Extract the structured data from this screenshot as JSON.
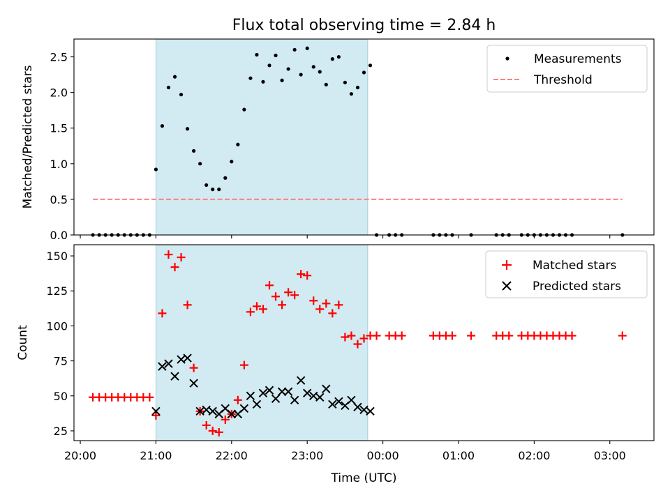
{
  "chart_data": {
    "type": "scatter",
    "title": "Flux total observing time = 2.84 h",
    "xlabel": "Time (UTC)",
    "x_ticks": [
      "20:00",
      "21:00",
      "22:00",
      "23:00",
      "00:00",
      "01:00",
      "02:00",
      "03:00"
    ],
    "xlim": [
      "19:55",
      "03:35"
    ],
    "shaded_interval": {
      "start": "21:00",
      "end": "23:48",
      "color": "#add8e6"
    },
    "panels": [
      {
        "ylabel": "Matched/Predicted stars",
        "ylim": [
          0,
          2.75
        ],
        "y_ticks": [
          "0.0",
          "0.5",
          "1.0",
          "1.5",
          "2.0",
          "2.5"
        ],
        "legend": "top-right",
        "series": [
          {
            "name": "Measurements",
            "marker": "dot",
            "color": "#000000",
            "x": [
              "20:10",
              "20:15",
              "20:20",
              "20:25",
              "20:30",
              "20:35",
              "20:40",
              "20:45",
              "20:50",
              "20:55",
              "21:00",
              "21:05",
              "21:10",
              "21:15",
              "21:20",
              "21:25",
              "21:30",
              "21:35",
              "21:40",
              "21:45",
              "21:50",
              "21:55",
              "22:00",
              "22:05",
              "22:10",
              "22:15",
              "22:20",
              "22:25",
              "22:30",
              "22:35",
              "22:40",
              "22:45",
              "22:50",
              "22:55",
              "23:00",
              "23:05",
              "23:10",
              "23:15",
              "23:20",
              "23:25",
              "23:30",
              "23:35",
              "23:40",
              "23:45",
              "23:50",
              "23:55",
              "00:05",
              "00:10",
              "00:15",
              "00:40",
              "00:45",
              "00:50",
              "00:55",
              "01:10",
              "01:30",
              "01:35",
              "01:40",
              "01:50",
              "01:55",
              "02:00",
              "02:05",
              "02:10",
              "02:15",
              "02:20",
              "02:25",
              "02:30",
              "03:10"
            ],
            "y": [
              0,
              0,
              0,
              0,
              0,
              0,
              0,
              0,
              0,
              0,
              0.92,
              1.53,
              2.07,
              2.22,
              1.97,
              1.49,
              1.18,
              1.0,
              0.7,
              0.64,
              0.64,
              0.8,
              1.03,
              1.27,
              1.76,
              2.2,
              2.53,
              2.15,
              2.38,
              2.52,
              2.17,
              2.33,
              2.6,
              2.25,
              2.62,
              2.36,
              2.29,
              2.11,
              2.47,
              2.5,
              2.14,
              1.98,
              2.07,
              2.28,
              2.38,
              0,
              0,
              0,
              0,
              0,
              0,
              0,
              0,
              0,
              0,
              0,
              0,
              0,
              0,
              0,
              0,
              0,
              0,
              0,
              0,
              0,
              0
            ]
          },
          {
            "name": "Threshold",
            "style": "dashed",
            "color": "#ff7f7f",
            "x": [
              "20:10",
              "03:10"
            ],
            "y": [
              0.5,
              0.5
            ]
          }
        ]
      },
      {
        "ylabel": "Count",
        "ylim": [
          18,
          158
        ],
        "y_ticks": [
          "25",
          "50",
          "75",
          "100",
          "125",
          "150"
        ],
        "legend": "top-right",
        "series": [
          {
            "name": "Matched stars",
            "marker": "plus",
            "color": "#ff0000",
            "x": [
              "20:10",
              "20:15",
              "20:20",
              "20:25",
              "20:30",
              "20:35",
              "20:40",
              "20:45",
              "20:50",
              "20:55",
              "21:00",
              "21:05",
              "21:10",
              "21:15",
              "21:20",
              "21:25",
              "21:30",
              "21:35",
              "21:40",
              "21:45",
              "21:50",
              "21:55",
              "22:00",
              "22:05",
              "22:10",
              "22:15",
              "22:20",
              "22:25",
              "22:30",
              "22:35",
              "22:40",
              "22:45",
              "22:50",
              "22:55",
              "23:00",
              "23:05",
              "23:10",
              "23:15",
              "23:20",
              "23:25",
              "23:30",
              "23:35",
              "23:40",
              "23:45",
              "23:50",
              "23:55",
              "00:05",
              "00:10",
              "00:15",
              "00:40",
              "00:45",
              "00:50",
              "00:55",
              "01:10",
              "01:30",
              "01:35",
              "01:40",
              "01:50",
              "01:55",
              "02:00",
              "02:05",
              "02:10",
              "02:15",
              "02:20",
              "02:25",
              "02:30",
              "03:10"
            ],
            "y": [
              49,
              49,
              49,
              49,
              49,
              49,
              49,
              49,
              49,
              49,
              36,
              109,
              151,
              142,
              149,
              115,
              70,
              39,
              29,
              25,
              24,
              33,
              37,
              47,
              72,
              110,
              114,
              112,
              129,
              121,
              115,
              124,
              122,
              137,
              136,
              118,
              112,
              116,
              109,
              115,
              92,
              93,
              87,
              91,
              93,
              93,
              93,
              93,
              93,
              93,
              93,
              93,
              93,
              93,
              93,
              93,
              93,
              93,
              93,
              93,
              93,
              93,
              93,
              93,
              93,
              93,
              93
            ]
          },
          {
            "name": "Predicted stars",
            "marker": "x",
            "color": "#000000",
            "x": [
              "21:00",
              "21:05",
              "21:10",
              "21:15",
              "21:20",
              "21:25",
              "21:30",
              "21:35",
              "21:40",
              "21:45",
              "21:50",
              "21:55",
              "22:00",
              "22:05",
              "22:10",
              "22:15",
              "22:20",
              "22:25",
              "22:30",
              "22:35",
              "22:40",
              "22:45",
              "22:50",
              "22:55",
              "23:00",
              "23:05",
              "23:10",
              "23:15",
              "23:20",
              "23:25",
              "23:30",
              "23:35",
              "23:40",
              "23:45",
              "23:50"
            ],
            "y": [
              39,
              71,
              73,
              64,
              76,
              77,
              59,
              39,
              40,
              39,
              37,
              41,
              37,
              37,
              41,
              50,
              44,
              52,
              54,
              48,
              53,
              53,
              47,
              61,
              52,
              50,
              49,
              55,
              44,
              46,
              43,
              47,
              42,
              40,
              39
            ]
          }
        ]
      }
    ]
  }
}
